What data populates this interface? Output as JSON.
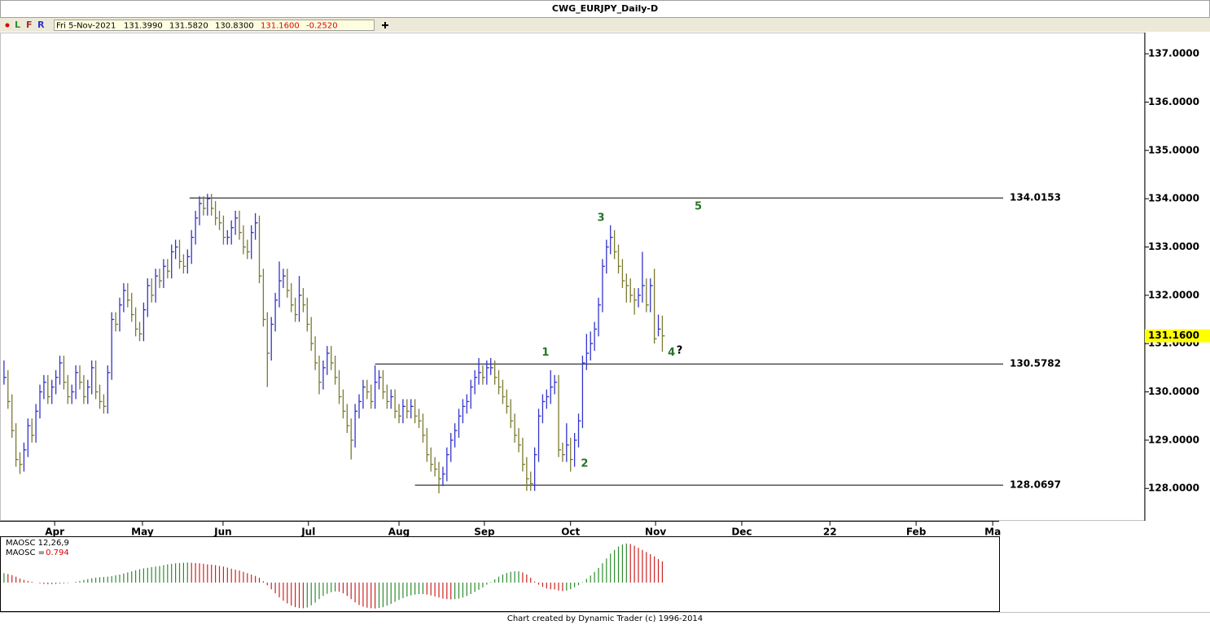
{
  "window": {
    "title": "CWG_EURJPY_Daily-D",
    "toolbar": {
      "buttons": [
        "L",
        "F",
        "R"
      ],
      "date": "Fri 5-Nov-2021",
      "open": "131.3990",
      "high": "131.5820",
      "low": "130.8300",
      "close": "131.1600",
      "change": "-0.2520"
    },
    "footer": "Chart created by Dynamic Trader  (c) 1996-2014"
  },
  "chart_data": [
    {
      "type": "ohlc",
      "up_color": "#3333cc",
      "down_color": "#7a7a30",
      "xlim": [
        -1,
        249.4
      ],
      "xticks": [
        {
          "value": 12.7,
          "label": "Apr"
        },
        {
          "value": 34.7,
          "label": "May"
        },
        {
          "value": 54.9,
          "label": "Jun"
        },
        {
          "value": 76.3,
          "label": "Jul"
        },
        {
          "value": 99,
          "label": "Aug"
        },
        {
          "value": 120.4,
          "label": "Sep"
        },
        {
          "value": 142,
          "label": "Oct"
        },
        {
          "value": 163.3,
          "label": "Nov"
        },
        {
          "value": 184.9,
          "label": "Dec"
        },
        {
          "value": 207,
          "label": "22"
        },
        {
          "value": 228.6,
          "label": "Feb"
        },
        {
          "value": 247.8,
          "label": "Ma"
        }
      ],
      "ylim": [
        127.33,
        137.44
      ],
      "yticks": [
        {
          "value": 128,
          "label": "128.0000"
        },
        {
          "value": 129,
          "label": "129.0000"
        },
        {
          "value": 130,
          "label": "130.0000"
        },
        {
          "value": 131,
          "label": "131.0000"
        },
        {
          "value": 132,
          "label": "132.0000"
        },
        {
          "value": 133,
          "label": "133.0000"
        },
        {
          "value": 134,
          "label": "134.0000"
        },
        {
          "value": 135,
          "label": "135.0000"
        },
        {
          "value": 136,
          "label": "136.0000"
        },
        {
          "value": 137,
          "label": "137.0000"
        }
      ],
      "last_price": {
        "value": 131.16,
        "label": "131.1600",
        "color": "#ffff00"
      },
      "levels": [
        {
          "value": 134.0153,
          "x_start": 46.5
        },
        {
          "value": 130.5782,
          "x_start": 93
        },
        {
          "value": 128.0697,
          "x_start": 103
        }
      ],
      "annotations": [
        {
          "text": "1",
          "x": 135.7,
          "y": 130.81,
          "color": "#267326"
        },
        {
          "text": "2",
          "x": 145.5,
          "y": 128.51,
          "color": "#267326"
        },
        {
          "text": "3",
          "x": 149.6,
          "y": 133.6,
          "color": "#267326"
        },
        {
          "text": "4",
          "x": 167.3,
          "y": 130.81,
          "color": "#267326"
        },
        {
          "text": "?",
          "x": 169.3,
          "y": 130.85,
          "color": "#000000"
        },
        {
          "text": "5",
          "x": 174,
          "y": 133.83,
          "color": "#267326"
        }
      ],
      "high": [
        130.65,
        130.45,
        129.95,
        129.35,
        128.75,
        128.95,
        129.45,
        129.45,
        129.75,
        130.15,
        130.35,
        130.35,
        130.25,
        130.45,
        130.75,
        130.75,
        130.35,
        130.15,
        130.55,
        130.55,
        130.35,
        130.25,
        130.65,
        130.65,
        130.15,
        129.95,
        130.55,
        131.65,
        131.65,
        131.95,
        132.25,
        132.25,
        132.05,
        131.75,
        131.45,
        131.85,
        132.35,
        132.35,
        132.55,
        132.55,
        132.75,
        132.75,
        133.05,
        133.15,
        133.15,
        132.85,
        132.95,
        133.35,
        133.75,
        134.05,
        134.05,
        134.1,
        134.1,
        133.95,
        133.75,
        133.65,
        133.35,
        133.55,
        133.75,
        133.75,
        133.45,
        133.15,
        133.45,
        133.7,
        133.65,
        132.55,
        131.65,
        131.55,
        132.05,
        132.7,
        132.55,
        132.55,
        132.25,
        131.95,
        132.4,
        132.15,
        131.95,
        131.55,
        131.15,
        130.75,
        130.65,
        130.95,
        130.95,
        130.75,
        130.45,
        130.05,
        129.75,
        129.45,
        129.75,
        129.95,
        130.25,
        130.25,
        130.15,
        130.55,
        130.45,
        130.45,
        130.15,
        130.05,
        130.05,
        129.75,
        129.85,
        129.85,
        129.85,
        129.85,
        129.65,
        129.55,
        129.25,
        128.85,
        128.65,
        128.55,
        128.45,
        128.85,
        129.15,
        129.35,
        129.65,
        129.85,
        129.95,
        130.25,
        130.45,
        130.7,
        130.55,
        130.65,
        130.7,
        130.65,
        130.45,
        130.25,
        130.05,
        129.85,
        129.55,
        129.25,
        129.05,
        128.65,
        128.35,
        128.85,
        129.65,
        129.95,
        130.05,
        130.45,
        130.35,
        130.35,
        128.95,
        129.35,
        129.05,
        129.15,
        129.55,
        130.75,
        131.2,
        131.25,
        131.45,
        131.95,
        132.75,
        133.15,
        133.45,
        133.35,
        133.05,
        132.75,
        132.45,
        132.35,
        132.15,
        132.15,
        132.9,
        132.35,
        132.35,
        132.55,
        131.6,
        131.58
      ],
      "low": [
        130.15,
        129.65,
        129.05,
        128.45,
        128.3,
        128.35,
        128.65,
        128.95,
        128.95,
        129.45,
        129.85,
        129.75,
        129.75,
        129.95,
        130.15,
        130.05,
        129.75,
        129.75,
        129.85,
        130.05,
        129.75,
        129.75,
        129.95,
        129.85,
        129.65,
        129.55,
        129.55,
        130.25,
        131.25,
        131.25,
        131.65,
        131.75,
        131.45,
        131.15,
        131.05,
        131.05,
        131.55,
        131.85,
        131.85,
        132.15,
        132.15,
        132.35,
        132.35,
        132.75,
        132.55,
        132.45,
        132.45,
        132.65,
        133.05,
        133.45,
        133.65,
        133.65,
        133.65,
        133.45,
        133.35,
        133.05,
        133.05,
        133.05,
        133.25,
        133.15,
        132.85,
        132.75,
        132.75,
        133.15,
        132.25,
        131.35,
        130.1,
        130.65,
        131.25,
        131.75,
        132.15,
        131.95,
        131.65,
        131.45,
        131.45,
        131.65,
        131.25,
        130.85,
        130.45,
        129.95,
        130.05,
        130.35,
        130.45,
        130.15,
        129.75,
        129.45,
        129.15,
        128.6,
        128.85,
        129.45,
        129.65,
        129.85,
        129.65,
        129.65,
        130.05,
        129.85,
        129.65,
        129.65,
        129.45,
        129.35,
        129.35,
        129.45,
        129.45,
        129.35,
        129.25,
        128.95,
        128.55,
        128.35,
        128.25,
        127.9,
        128.05,
        128.15,
        128.55,
        128.85,
        129.05,
        129.35,
        129.55,
        129.65,
        129.95,
        130.15,
        130.15,
        130.15,
        130.35,
        130.15,
        129.95,
        129.75,
        129.55,
        129.25,
        128.95,
        128.75,
        128.35,
        127.95,
        127.95,
        127.95,
        128.55,
        129.35,
        129.65,
        129.75,
        129.95,
        128.65,
        128.55,
        128.55,
        128.35,
        128.45,
        128.85,
        129.25,
        130.45,
        130.65,
        130.85,
        131.15,
        131.65,
        132.45,
        132.85,
        132.75,
        132.45,
        132.15,
        131.85,
        131.85,
        131.6,
        131.75,
        131.85,
        131.65,
        131.65,
        131.0,
        131.15,
        130.83
      ],
      "close": [
        130.3,
        129.8,
        129.2,
        128.6,
        128.5,
        128.8,
        129.3,
        129.1,
        129.6,
        130.0,
        130.2,
        129.9,
        130.1,
        130.3,
        130.6,
        130.2,
        129.9,
        130.0,
        130.4,
        130.2,
        129.9,
        130.1,
        130.5,
        130.0,
        129.8,
        129.7,
        130.4,
        131.5,
        131.4,
        131.8,
        132.1,
        131.9,
        131.6,
        131.3,
        131.2,
        131.7,
        132.2,
        132.0,
        132.4,
        132.3,
        132.6,
        132.5,
        132.9,
        133.0,
        132.7,
        132.6,
        132.8,
        133.2,
        133.6,
        133.9,
        133.8,
        134.0,
        133.8,
        133.6,
        133.5,
        133.2,
        133.2,
        133.4,
        133.6,
        133.3,
        133.0,
        132.9,
        133.3,
        133.5,
        132.4,
        131.5,
        130.8,
        131.4,
        131.9,
        132.3,
        132.4,
        132.1,
        131.8,
        131.6,
        132.0,
        131.8,
        131.4,
        131.0,
        130.6,
        130.2,
        130.5,
        130.8,
        130.6,
        130.3,
        129.9,
        129.6,
        129.3,
        129.0,
        129.6,
        129.8,
        130.1,
        130.0,
        129.8,
        130.2,
        130.3,
        130.0,
        129.8,
        129.9,
        129.6,
        129.5,
        129.7,
        129.6,
        129.7,
        129.5,
        129.4,
        129.1,
        128.7,
        128.5,
        128.4,
        128.2,
        128.3,
        128.7,
        129.0,
        129.2,
        129.5,
        129.7,
        129.8,
        130.1,
        130.3,
        130.4,
        130.3,
        130.5,
        130.5,
        130.3,
        130.1,
        129.9,
        129.7,
        129.4,
        129.1,
        128.9,
        128.5,
        128.2,
        128.1,
        128.7,
        129.5,
        129.8,
        129.9,
        130.1,
        130.2,
        128.8,
        128.7,
        128.9,
        128.6,
        129.0,
        129.4,
        130.6,
        130.8,
        131.0,
        131.3,
        131.8,
        132.6,
        133.0,
        133.2,
        132.9,
        132.6,
        132.3,
        132.2,
        132.0,
        131.9,
        132.0,
        132.2,
        131.8,
        132.2,
        131.1,
        131.3,
        131.16
      ]
    },
    {
      "type": "oscillator",
      "title": "MAOSC 12,26,9",
      "value_title": "MAOSC =",
      "last": 0.794,
      "last_color": "#dd0000",
      "up_color": "#2e8b2e",
      "down_color": "#cc2222",
      "ylim": [
        -1.1,
        1.7
      ],
      "values": [
        0.35,
        0.32,
        0.28,
        0.22,
        0.15,
        0.1,
        0.06,
        0.03,
        0.0,
        -0.03,
        -0.05,
        -0.06,
        -0.06,
        -0.05,
        -0.04,
        -0.03,
        -0.02,
        0.0,
        0.03,
        0.06,
        0.1,
        0.13,
        0.16,
        0.18,
        0.2,
        0.21,
        0.22,
        0.24,
        0.27,
        0.3,
        0.34,
        0.38,
        0.42,
        0.46,
        0.5,
        0.53,
        0.55,
        0.58,
        0.6,
        0.62,
        0.65,
        0.68,
        0.7,
        0.72,
        0.73,
        0.74,
        0.75,
        0.74,
        0.73,
        0.72,
        0.7,
        0.68,
        0.67,
        0.65,
        0.62,
        0.6,
        0.56,
        0.52,
        0.48,
        0.45,
        0.4,
        0.35,
        0.3,
        0.25,
        0.18,
        0.05,
        -0.1,
        -0.25,
        -0.4,
        -0.55,
        -0.68,
        -0.78,
        -0.86,
        -0.92,
        -0.95,
        -0.96,
        -0.93,
        -0.85,
        -0.75,
        -0.62,
        -0.5,
        -0.42,
        -0.36,
        -0.33,
        -0.34,
        -0.4,
        -0.5,
        -0.62,
        -0.74,
        -0.84,
        -0.9,
        -0.94,
        -0.96,
        -0.97,
        -0.95,
        -0.92,
        -0.86,
        -0.8,
        -0.72,
        -0.65,
        -0.58,
        -0.52,
        -0.48,
        -0.45,
        -0.43,
        -0.43,
        -0.45,
        -0.48,
        -0.52,
        -0.56,
        -0.6,
        -0.62,
        -0.63,
        -0.62,
        -0.6,
        -0.56,
        -0.5,
        -0.43,
        -0.35,
        -0.27,
        -0.18,
        -0.08,
        0.02,
        0.12,
        0.22,
        0.3,
        0.36,
        0.4,
        0.42,
        0.42,
        0.38,
        0.3,
        0.18,
        0.04,
        -0.08,
        -0.16,
        -0.22,
        -0.25,
        -0.26,
        -0.3,
        -0.32,
        -0.3,
        -0.25,
        -0.18,
        -0.1,
        0.02,
        0.14,
        0.26,
        0.4,
        0.55,
        0.72,
        0.9,
        1.08,
        1.22,
        1.35,
        1.42,
        1.46,
        1.44,
        1.38,
        1.3,
        1.22,
        1.14,
        1.06,
        0.98,
        0.88,
        0.794
      ]
    }
  ]
}
